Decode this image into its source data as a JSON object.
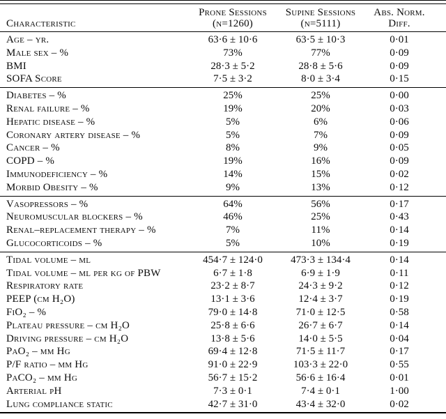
{
  "table": {
    "header": {
      "characteristic": "Characteristic",
      "prone_line1": "Prone Sessions",
      "prone_line2": "(n=1260)",
      "supine_line1": "Supine Sessions",
      "supine_line2": "(n=5111)",
      "diff_line1": "Abs. Norm.",
      "diff_line2": "Diff."
    },
    "sections": [
      {
        "rows": [
          {
            "label": "Age – yr.",
            "prone": "63·6 ± 10·6",
            "supine": "63·5 ± 10·3",
            "diff": "0·01"
          },
          {
            "label": "Male sex – %",
            "prone": "73%",
            "supine": "77%",
            "diff": "0·09"
          },
          {
            "label": "BMI",
            "prone": "28·3 ± 5·2",
            "supine": "28·8 ± 5·6",
            "diff": "0·09"
          },
          {
            "label": "SOFA Score",
            "prone": "7·5 ± 3·2",
            "supine": "8·0 ± 3·4",
            "diff": "0·15"
          }
        ]
      },
      {
        "rows": [
          {
            "label": "Diabetes – %",
            "prone": "25%",
            "supine": "25%",
            "diff": "0·00"
          },
          {
            "label": "Renal failure – %",
            "prone": "19%",
            "supine": "20%",
            "diff": "0·03"
          },
          {
            "label": "Hepatic disease – %",
            "prone": "5%",
            "supine": "6%",
            "diff": "0·06"
          },
          {
            "label": "Coronary artery disease – %",
            "prone": "5%",
            "supine": "7%",
            "diff": "0·09"
          },
          {
            "label": "Cancer – %",
            "prone": "8%",
            "supine": "9%",
            "diff": "0·05"
          },
          {
            "label": "COPD – %",
            "prone": "19%",
            "supine": "16%",
            "diff": "0·09"
          },
          {
            "label": "Immunodeficiency – %",
            "prone": "14%",
            "supine": "15%",
            "diff": "0·02"
          },
          {
            "label": "Morbid Obesity – %",
            "prone": "9%",
            "supine": "13%",
            "diff": "0·12"
          }
        ]
      },
      {
        "rows": [
          {
            "label": "Vasopressors – %",
            "prone": "64%",
            "supine": "56%",
            "diff": "0·17"
          },
          {
            "label": "Neuromuscular blockers – %",
            "prone": "46%",
            "supine": "25%",
            "diff": "0·43"
          },
          {
            "label": "Renal–replacement therapy – %",
            "prone": "7%",
            "supine": "11%",
            "diff": "0·14"
          },
          {
            "label": "Glucocorticoids – %",
            "prone": "5%",
            "supine": "10%",
            "diff": "0·19"
          }
        ]
      },
      {
        "rows": [
          {
            "label": "Tidal volume – ml",
            "prone": "454·7 ± 124·0",
            "supine": "473·3 ± 134·4",
            "diff": "0·14"
          },
          {
            "label": "Tidal volume – ml per kg of PBW",
            "prone": "6·7 ± 1·8",
            "supine": "6·9 ± 1·9",
            "diff": "0·11"
          },
          {
            "label": "Respiratory rate",
            "prone": "23·2 ± 8·7",
            "supine": "24·3 ± 9·2",
            "diff": "0·12"
          },
          {
            "label": "PEEP (cm H₂O)",
            "prone": "13·1 ± 3·6",
            "supine": "12·4 ± 3·7",
            "diff": "0·19"
          },
          {
            "label": "FiO₂ – %",
            "prone": "79·0 ± 14·8",
            "supine": "71·0 ± 12·5",
            "diff": "0·58"
          },
          {
            "label": "Plateau pressure – cm H₂O",
            "prone": "25·8 ± 6·6",
            "supine": "26·7 ± 6·7",
            "diff": "0·14"
          },
          {
            "label": "Driving pressure – cm H₂O",
            "prone": "13·8 ± 5·6",
            "supine": "14·0 ± 5·5",
            "diff": "0·04"
          },
          {
            "label": "PaO₂ – mm Hg",
            "prone": "69·4 ± 12·8",
            "supine": "71·5 ± 11·7",
            "diff": "0·17"
          },
          {
            "label": "P/F ratio – mm Hg",
            "prone": "91·0 ± 22·9",
            "supine": "103·3 ± 22·0",
            "diff": "0·55"
          },
          {
            "label": "PaCO₂ – mm Hg",
            "prone": "56·7 ± 15·2",
            "supine": "56·6 ± 16·4",
            "diff": "0·01"
          },
          {
            "label": "Arterial pH",
            "prone": "7·3 ± 0·1",
            "supine": "7·4 ± 0·1",
            "diff": "1·00"
          },
          {
            "label": "Lung compliance static",
            "prone": "42·7 ± 31·0",
            "supine": "43·4 ± 32·0",
            "diff": "0·02"
          }
        ]
      }
    ]
  }
}
